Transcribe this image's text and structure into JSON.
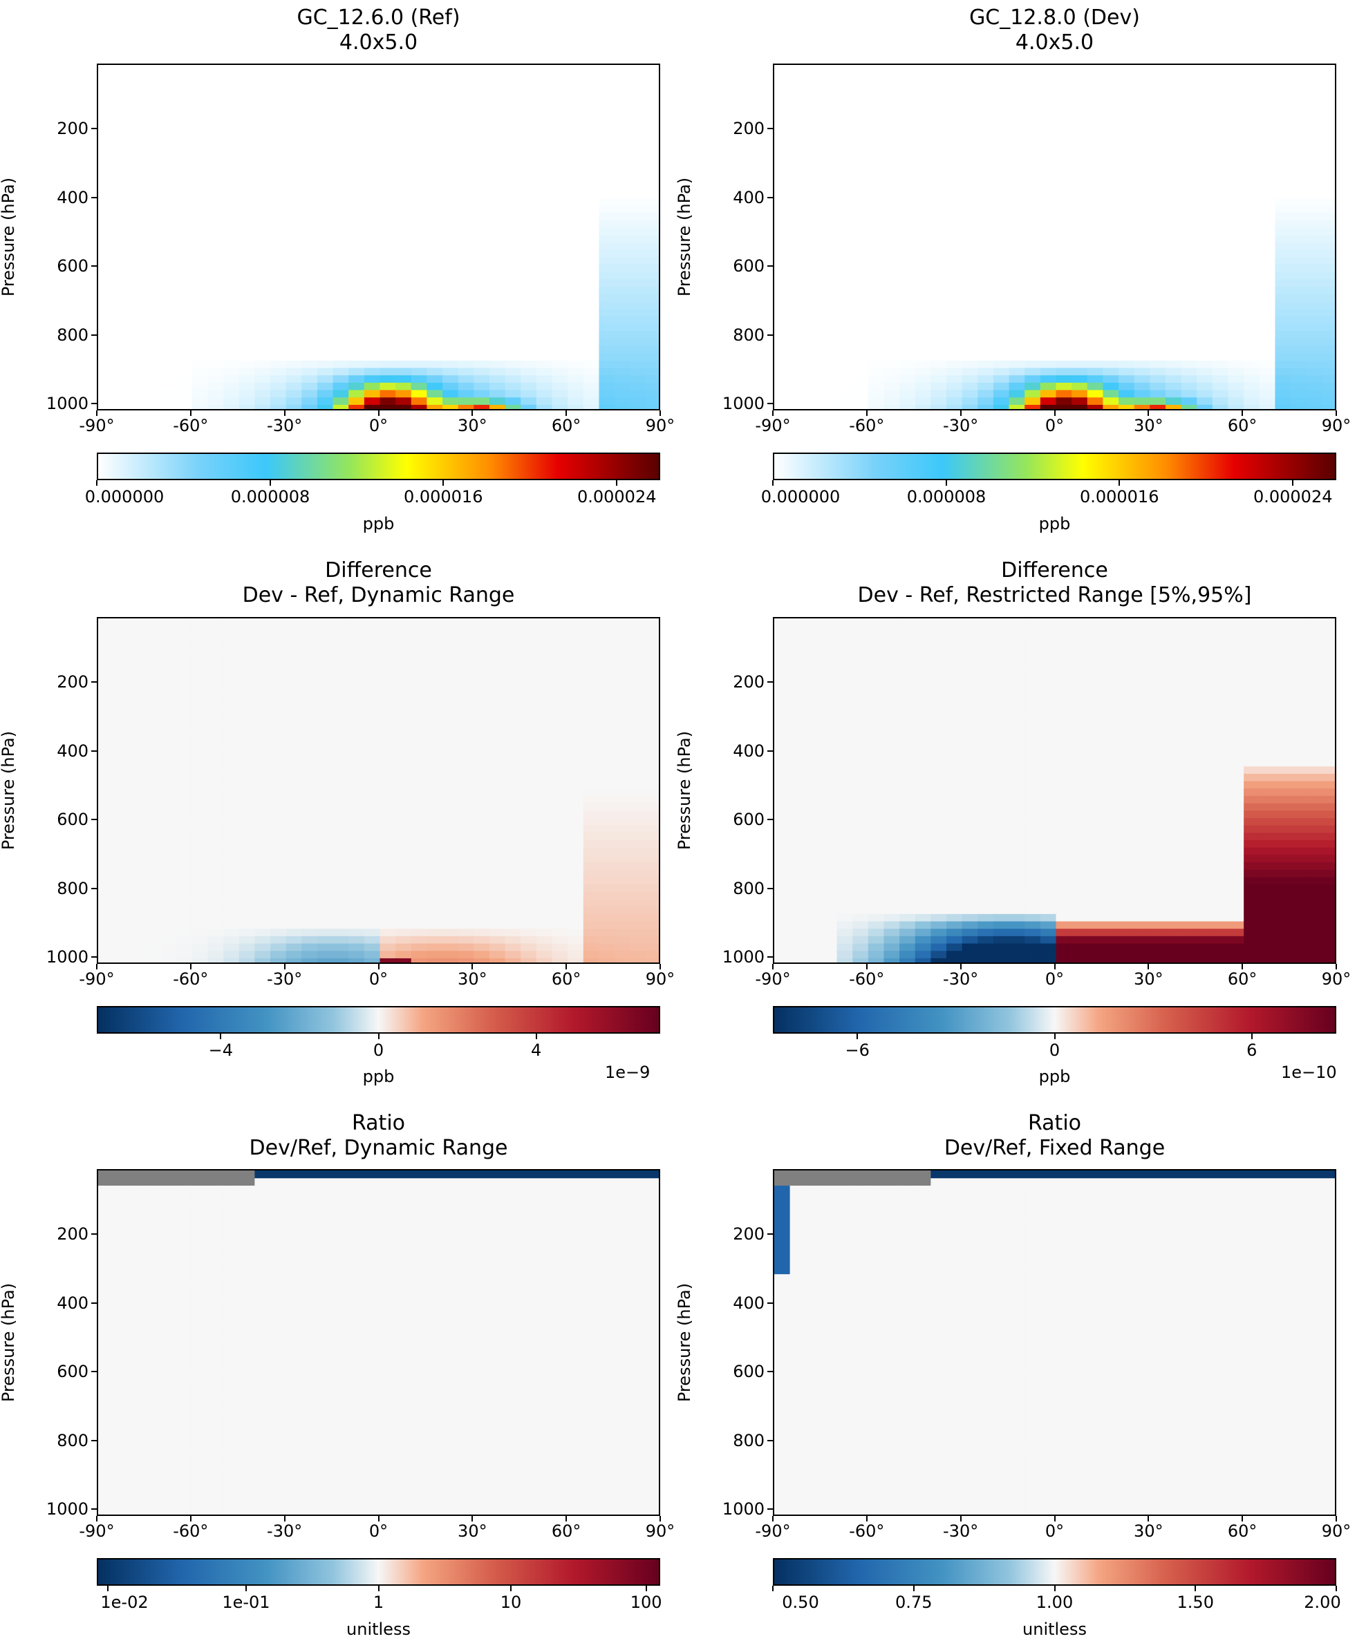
{
  "panels": [
    {
      "title1": "GC_12.6.0 (Ref)",
      "title2": "4.0x5.0",
      "ylabel": "Pressure (hPa)",
      "yticks": [
        "200",
        "400",
        "600",
        "800",
        "1000"
      ],
      "xticks": [
        "-90°",
        "-60°",
        "-30°",
        "0°",
        "30°",
        "60°",
        "90°"
      ],
      "cb_label": "ppb",
      "cb_ticks": [
        "0.000000",
        "0.000008",
        "0.000016",
        "0.000024"
      ],
      "cb_mult": ""
    },
    {
      "title1": "GC_12.8.0 (Dev)",
      "title2": "4.0x5.0",
      "ylabel": "Pressure (hPa)",
      "yticks": [
        "200",
        "400",
        "600",
        "800",
        "1000"
      ],
      "xticks": [
        "-90°",
        "-60°",
        "-30°",
        "0°",
        "30°",
        "60°",
        "90°"
      ],
      "cb_label": "ppb",
      "cb_ticks": [
        "0.000000",
        "0.000008",
        "0.000016",
        "0.000024"
      ],
      "cb_mult": ""
    },
    {
      "title1": "Difference",
      "title2": "Dev - Ref, Dynamic Range",
      "ylabel": "Pressure (hPa)",
      "yticks": [
        "200",
        "400",
        "600",
        "800",
        "1000"
      ],
      "xticks": [
        "-90°",
        "-60°",
        "-30°",
        "0°",
        "30°",
        "60°",
        "90°"
      ],
      "cb_label": "ppb",
      "cb_ticks": [
        "−4",
        "0",
        "4"
      ],
      "cb_mult": "1e−9"
    },
    {
      "title1": "Difference",
      "title2": "Dev - Ref, Restricted Range [5%,95%]",
      "ylabel": "Pressure (hPa)",
      "yticks": [
        "200",
        "400",
        "600",
        "800",
        "1000"
      ],
      "xticks": [
        "-90°",
        "-60°",
        "-30°",
        "0°",
        "30°",
        "60°",
        "90°"
      ],
      "cb_label": "ppb",
      "cb_ticks": [
        "−6",
        "0",
        "6"
      ],
      "cb_mult": "1e−10"
    },
    {
      "title1": "Ratio",
      "title2": "Dev/Ref, Dynamic Range",
      "ylabel": "Pressure (hPa)",
      "yticks": [
        "200",
        "400",
        "600",
        "800",
        "1000"
      ],
      "xticks": [
        "-90°",
        "-60°",
        "-30°",
        "0°",
        "30°",
        "60°",
        "90°"
      ],
      "cb_label": "unitless",
      "cb_ticks": [
        "1e-02",
        "1e-01",
        "1",
        "10",
        "100"
      ],
      "cb_mult": ""
    },
    {
      "title1": "Ratio",
      "title2": "Dev/Ref, Fixed Range",
      "ylabel": "Pressure (hPa)",
      "yticks": [
        "200",
        "400",
        "600",
        "800",
        "1000"
      ],
      "xticks": [
        "-90°",
        "-60°",
        "-30°",
        "0°",
        "30°",
        "60°",
        "90°"
      ],
      "cb_label": "unitless",
      "cb_ticks": [
        "0.50",
        "0.75",
        "1.00",
        "1.50",
        "2.00"
      ],
      "cb_mult": ""
    }
  ],
  "chart_data": [
    {
      "type": "heatmap",
      "title": "GC_12.6.0 (Ref) 4.0x5.0",
      "xlabel": "",
      "ylabel": "Pressure (hPa)",
      "xlim": [
        -90,
        90
      ],
      "ylim": [
        1000,
        0
      ],
      "colorbar": {
        "label": "ppb",
        "range": [
          0,
          2.6e-05
        ],
        "cmap": "WhGrYlRd"
      }
    },
    {
      "type": "heatmap",
      "title": "GC_12.8.0 (Dev) 4.0x5.0",
      "xlabel": "",
      "ylabel": "Pressure (hPa)",
      "xlim": [
        -90,
        90
      ],
      "ylim": [
        1000,
        0
      ],
      "colorbar": {
        "label": "ppb",
        "range": [
          0,
          2.6e-05
        ],
        "cmap": "WhGrYlRd"
      }
    },
    {
      "type": "heatmap",
      "title": "Difference Dev - Ref, Dynamic Range",
      "ylabel": "Pressure (hPa)",
      "xlim": [
        -90,
        90
      ],
      "ylim": [
        1000,
        0
      ],
      "colorbar": {
        "label": "ppb",
        "range": [
          -7e-09,
          7e-09
        ],
        "cmap": "RdBu_r"
      }
    },
    {
      "type": "heatmap",
      "title": "Difference Dev - Ref, Restricted Range [5%,95%]",
      "ylabel": "Pressure (hPa)",
      "xlim": [
        -90,
        90
      ],
      "ylim": [
        1000,
        0
      ],
      "colorbar": {
        "label": "ppb",
        "range": [
          -8.5e-10,
          8.5e-10
        ],
        "cmap": "RdBu_r"
      }
    },
    {
      "type": "heatmap",
      "title": "Ratio Dev/Ref, Dynamic Range",
      "ylabel": "Pressure (hPa)",
      "xlim": [
        -90,
        90
      ],
      "ylim": [
        1000,
        0
      ],
      "colorbar": {
        "label": "unitless",
        "range": [
          0.007,
          140
        ],
        "scale": "log",
        "cmap": "RdBu_r"
      }
    },
    {
      "type": "heatmap",
      "title": "Ratio Dev/Ref, Fixed Range",
      "ylabel": "Pressure (hPa)",
      "xlim": [
        -90,
        90
      ],
      "ylim": [
        1000,
        0
      ],
      "colorbar": {
        "label": "unitless",
        "range": [
          0.5,
          2.0
        ],
        "cmap": "RdBu_r"
      }
    }
  ]
}
